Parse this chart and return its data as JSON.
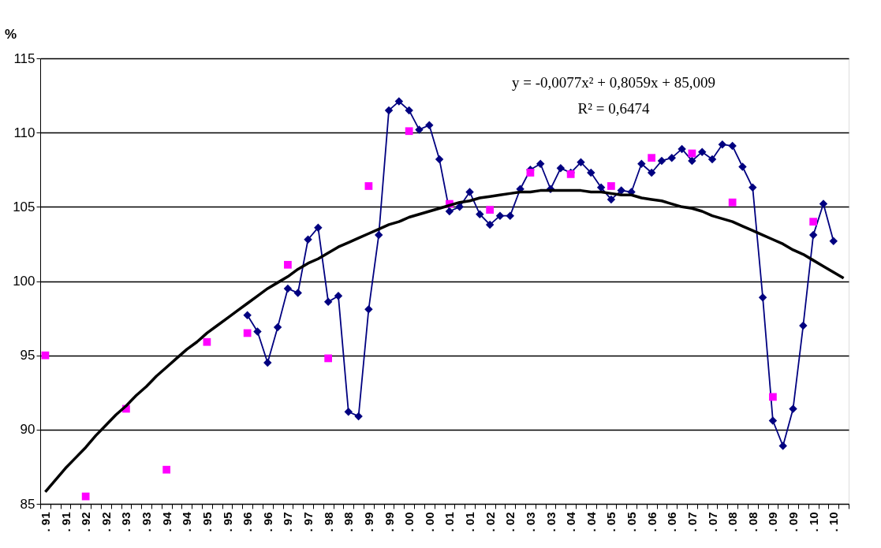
{
  "chart_data": {
    "type": "line",
    "ylabel": "%",
    "categories": [
      ". 91",
      null,
      ". 91",
      null,
      ". 92",
      null,
      ". 92",
      null,
      ". 93",
      null,
      ". 93",
      null,
      ". 94",
      null,
      ". 94",
      null,
      ". 95",
      null,
      ". 95",
      null,
      ". 96",
      null,
      ". 96",
      null,
      ". 97",
      null,
      ". 97",
      null,
      ". 98",
      null,
      ". 98",
      null,
      ". 99",
      null,
      ". 99",
      null,
      ". 00",
      null,
      ". 00",
      null,
      ". 01",
      null,
      ". 01",
      null,
      ". 02",
      null,
      ". 02",
      null,
      ". 03",
      null,
      ". 03",
      null,
      ". 04",
      null,
      ". 04",
      null,
      ". 05",
      null,
      ". 05",
      null,
      ". 06",
      null,
      ". 06",
      null,
      ". 07",
      null,
      ". 07",
      null,
      ". 08",
      null,
      ". 08",
      null,
      ". 09",
      null,
      ". 09",
      null,
      ". 10",
      null,
      ". 10",
      null
    ],
    "series": [
      {
        "color": "#000080",
        "marker": "diamond",
        "values": [
          null,
          null,
          null,
          null,
          null,
          null,
          null,
          null,
          null,
          null,
          null,
          null,
          null,
          null,
          null,
          null,
          null,
          null,
          null,
          null,
          97.7,
          96.6,
          94.5,
          96.9,
          99.5,
          99.2,
          102.8,
          103.6,
          98.6,
          99.0,
          91.2,
          90.9,
          98.1,
          103.1,
          111.5,
          112.1,
          111.5,
          110.2,
          110.5,
          108.2,
          104.7,
          105.0,
          106.0,
          104.5,
          103.8,
          104.4,
          104.4,
          106.2,
          107.5,
          107.9,
          106.2,
          107.6,
          107.3,
          108.0,
          107.3,
          106.3,
          105.5,
          106.1,
          106.0,
          107.9,
          107.3,
          108.1,
          108.3,
          108.9,
          108.1,
          108.7,
          108.2,
          109.2,
          109.1,
          107.7,
          106.3,
          98.9,
          90.6,
          88.9,
          91.4,
          97.0,
          103.1,
          105.2,
          102.7,
          null
        ]
      },
      {
        "type": "scatter",
        "color": "#ff00ff",
        "marker": "square",
        "values": [
          95.0,
          null,
          null,
          null,
          85.5,
          null,
          null,
          null,
          91.4,
          null,
          null,
          null,
          87.3,
          null,
          null,
          null,
          95.9,
          null,
          null,
          null,
          96.5,
          null,
          null,
          null,
          101.1,
          null,
          null,
          null,
          94.8,
          null,
          null,
          null,
          106.4,
          null,
          null,
          null,
          110.1,
          null,
          null,
          null,
          105.2,
          null,
          null,
          null,
          104.8,
          null,
          null,
          null,
          107.3,
          null,
          null,
          null,
          107.2,
          null,
          null,
          null,
          106.4,
          null,
          null,
          null,
          108.3,
          null,
          null,
          null,
          108.6,
          null,
          null,
          null,
          105.3,
          null,
          null,
          null,
          92.2,
          null,
          null,
          null,
          104.0,
          null,
          null,
          null
        ]
      },
      {
        "color": "#000000",
        "marker": "none",
        "values": [
          85.8,
          86.6,
          87.4,
          88.1,
          88.8,
          89.6,
          90.3,
          91.0,
          91.6,
          92.3,
          92.9,
          93.6,
          94.2,
          94.8,
          95.4,
          95.9,
          96.5,
          97.0,
          97.5,
          98.0,
          98.5,
          99.0,
          99.5,
          99.9,
          100.3,
          100.8,
          101.2,
          101.5,
          101.9,
          102.3,
          102.6,
          102.9,
          103.2,
          103.5,
          103.8,
          104.0,
          104.3,
          104.5,
          104.7,
          104.9,
          105.1,
          105.3,
          105.4,
          105.6,
          105.7,
          105.8,
          105.9,
          106.0,
          106.0,
          106.1,
          106.1,
          106.1,
          106.1,
          106.1,
          106.0,
          106.0,
          105.9,
          105.8,
          105.8,
          105.6,
          105.5,
          105.4,
          105.2,
          105.0,
          104.9,
          104.7,
          104.4,
          104.2,
          104.0,
          103.7,
          103.4,
          103.1,
          102.8,
          102.5,
          102.1,
          101.8,
          101.4,
          101.0,
          100.6,
          100.2
        ]
      }
    ],
    "ylim": [
      85,
      115
    ],
    "yticks": [
      85,
      90,
      95,
      100,
      105,
      110,
      115
    ],
    "grid": "y",
    "legend": false,
    "annotations": [
      "y = -0,0077x² + 0,8059x + 85,009",
      "R² = 0,6474"
    ]
  }
}
